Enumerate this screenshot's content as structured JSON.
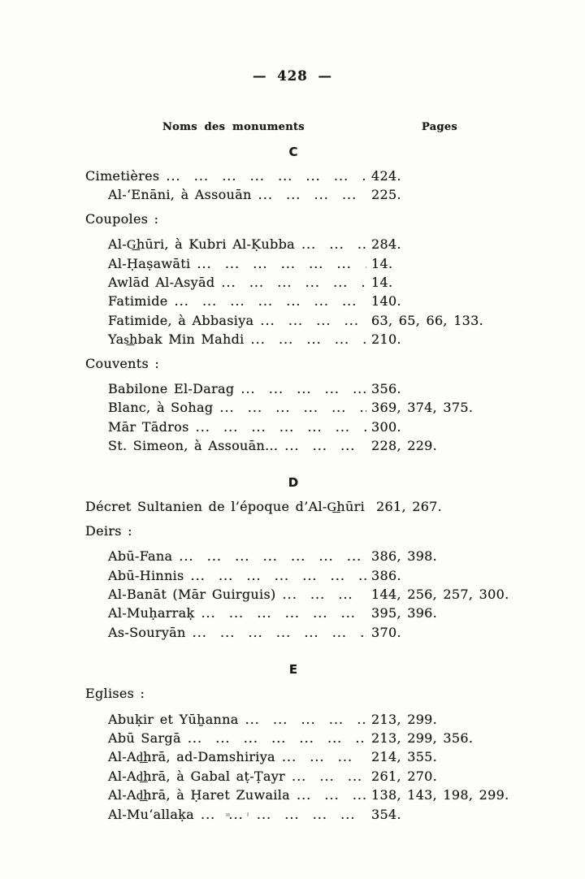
{
  "page": {
    "number_display": "— 428 —",
    "columns": {
      "names": "Noms des monuments",
      "pages": "Pages"
    },
    "leader": "...  ...  ...  ...  ...  ...  ...  ...  ...  ...  ...  ...  ...  ..."
  },
  "sections": [
    {
      "letter": "C",
      "rows": [
        {
          "type": "entry",
          "indent": 0,
          "name": "Cimetières",
          "pages": "424."
        },
        {
          "type": "entry",
          "indent": 1,
          "name": "Al-‘Enāni, à Assouān",
          "pages": "225."
        },
        {
          "type": "group",
          "name": "Coupoles :"
        },
        {
          "type": "entry",
          "indent": 1,
          "name": "Al-G͟hūri, à Kubri Al-Ḳubba",
          "pages": "284."
        },
        {
          "type": "entry",
          "indent": 1,
          "name": "Al-Ḥaṣawāti",
          "pages": "14."
        },
        {
          "type": "entry",
          "indent": 1,
          "name": "Awlād Al-Asyād",
          "pages": "14."
        },
        {
          "type": "entry",
          "indent": 1,
          "name": "Fatimide",
          "pages": "140."
        },
        {
          "type": "entry",
          "indent": 1,
          "name": "Fatimide, à Abbasiya",
          "pages": "63, 65, 66, 133."
        },
        {
          "type": "entry",
          "indent": 1,
          "name": "Yas͟hbak Min Mahdi",
          "pages": "210."
        },
        {
          "type": "group",
          "name": "Couvents :"
        },
        {
          "type": "entry",
          "indent": 1,
          "name": "Babilone El-Darag",
          "pages": "356."
        },
        {
          "type": "entry",
          "indent": 1,
          "name": "Blanc, à Sohag",
          "pages": "369, 374, 375."
        },
        {
          "type": "entry",
          "indent": 1,
          "name": "Mār Tādros",
          "pages": "300."
        },
        {
          "type": "entry",
          "indent": 1,
          "name": "St. Simeon, à Assouān...",
          "pages": "228, 229."
        }
      ]
    },
    {
      "letter": "D",
      "rows": [
        {
          "type": "entry",
          "indent": 0,
          "name": "Décret Sultanien de l’époque d’Al-G͟hūri",
          "pages": "261, 267."
        },
        {
          "type": "group",
          "name": "Deirs :"
        },
        {
          "type": "entry",
          "indent": 1,
          "name": "Abū-Fana",
          "pages": "386, 398."
        },
        {
          "type": "entry",
          "indent": 1,
          "name": "Abū-Hinnis",
          "pages": "386."
        },
        {
          "type": "entry",
          "indent": 1,
          "name": "Al-Banāt (Mār Guirguis)",
          "pages": "144, 256, 257, 300."
        },
        {
          "type": "entry",
          "indent": 1,
          "name": "Al-Muḥarraḳ",
          "pages": "395, 396."
        },
        {
          "type": "entry",
          "indent": 1,
          "name": "As-Souryān",
          "pages": "370."
        }
      ]
    },
    {
      "letter": "E",
      "rows": [
        {
          "type": "group",
          "name": "Eglises :"
        },
        {
          "type": "entry",
          "indent": 1,
          "name": "Abuḳir et Yūẖanna",
          "pages": "213, 299."
        },
        {
          "type": "entry",
          "indent": 1,
          "name": "Abū Sargā",
          "pages": "213, 299, 356."
        },
        {
          "type": "entry",
          "indent": 1,
          "name": "Al-Ad͟hrā, ad-Damshiriya",
          "pages": "214, 355."
        },
        {
          "type": "entry",
          "indent": 1,
          "name": "Al-Ad͟hrā, à Gabal aṭ-Ṭayr",
          "pages": "261, 270."
        },
        {
          "type": "entry",
          "indent": 1,
          "name": "Al-Ad͟hrā, à Ḥaret Zuwaila",
          "pages": "138, 143, 198, 299."
        },
        {
          "type": "entry",
          "indent": 1,
          "name": "Al-Mu‘allaḳa",
          "pages": "354."
        }
      ]
    }
  ]
}
